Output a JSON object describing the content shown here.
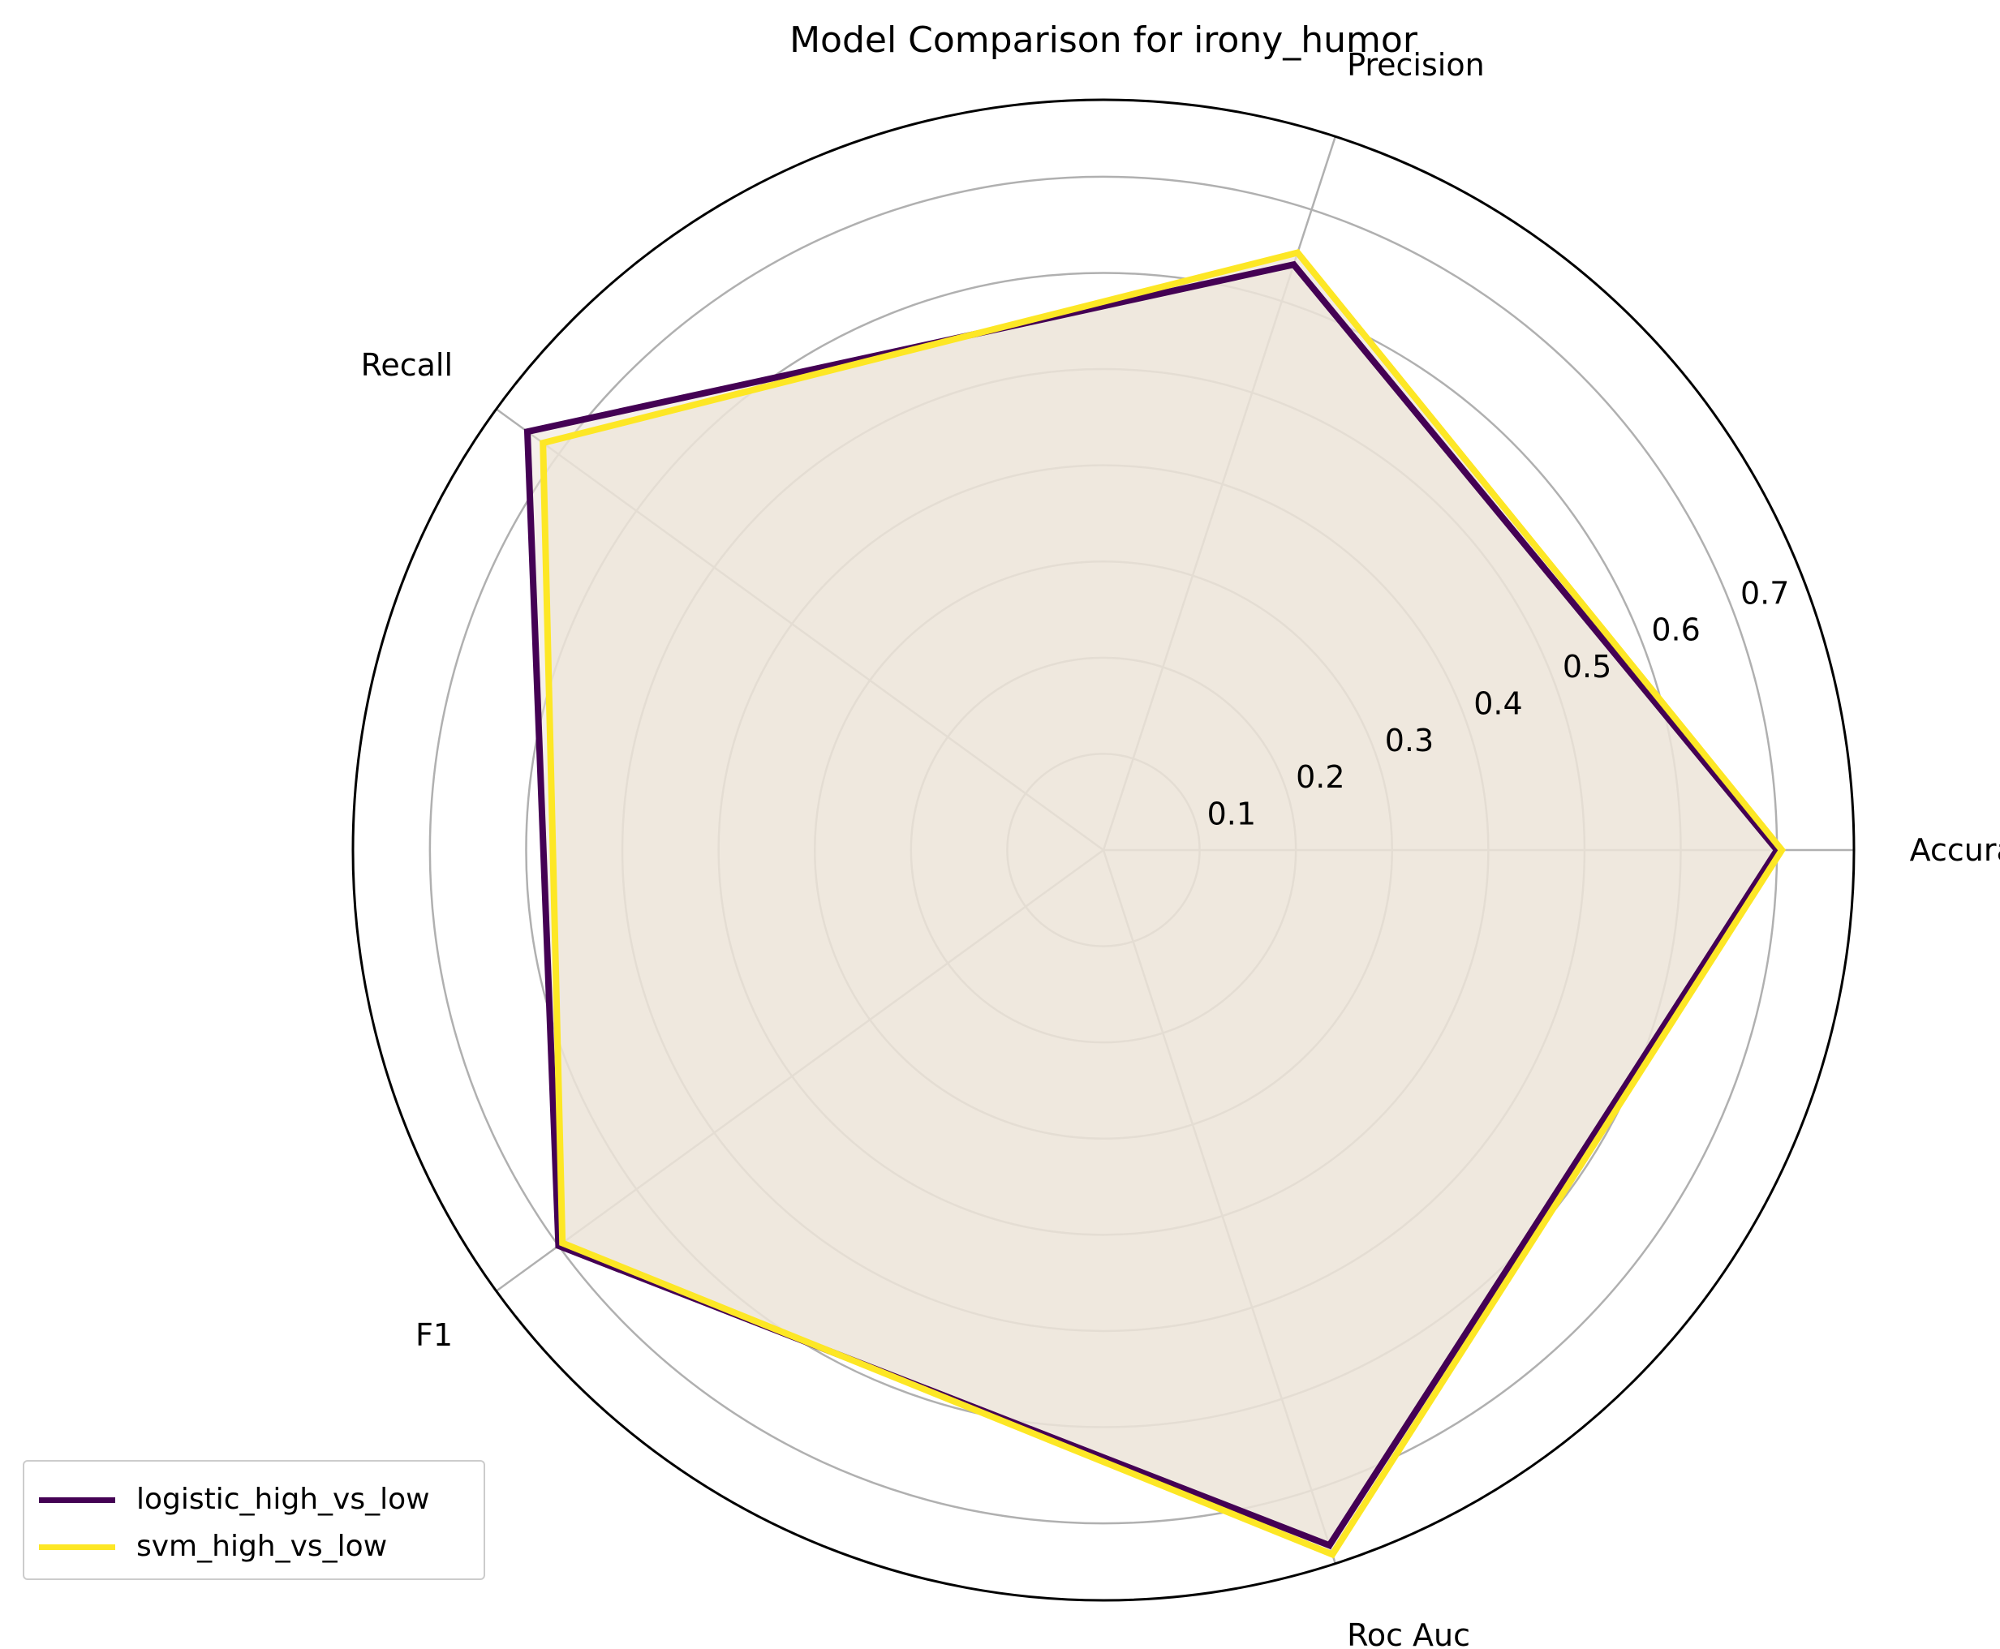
{
  "chart_data": {
    "type": "radar",
    "title": "Model Comparison for irony_humor",
    "axes": [
      "Accuracy",
      "Precision",
      "Recall",
      "F1",
      "Roc Auc"
    ],
    "radial_ticks": [
      "0.1",
      "0.2",
      "0.3",
      "0.4",
      "0.5",
      "0.6",
      "0.7"
    ],
    "radial_tick_values": [
      0.1,
      0.2,
      0.3,
      0.4,
      0.5,
      0.6,
      0.7
    ],
    "rlim": [
      0,
      0.78
    ],
    "grid": true,
    "legend_position": "lower-left",
    "series": [
      {
        "name": "logistic_high_vs_low",
        "color": "#440154",
        "values": [
          0.7,
          0.64,
          0.74,
          0.7,
          0.76
        ]
      },
      {
        "name": "svm_high_vs_low",
        "color": "#fde725",
        "values": [
          0.705,
          0.653,
          0.72,
          0.695,
          0.77
        ]
      }
    ],
    "fill_color": "#ede4d8"
  }
}
